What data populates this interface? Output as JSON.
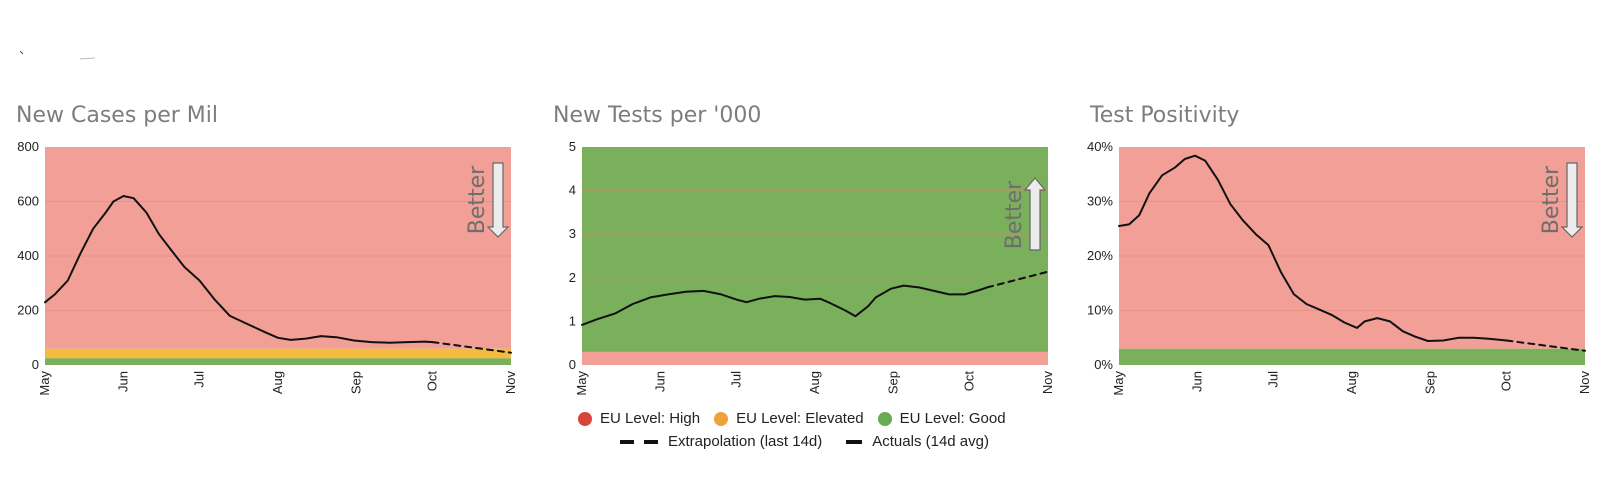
{
  "colors": {
    "high": "#f2a097",
    "elevated": "#f5bb3d",
    "good": "#7ab05c",
    "line": "#111111",
    "grid": "#e08070",
    "legend_high": "#d9443a",
    "legend_elevated": "#f0a23a",
    "legend_good": "#6aaa55"
  },
  "chart_data": [
    {
      "type": "line",
      "title": "New Cases per Mil",
      "x_ticks": [
        "May",
        "Jun",
        "Jul",
        "Aug",
        "Sep",
        "Oct",
        "Nov"
      ],
      "y_ticks": [
        "0",
        "200",
        "400",
        "600",
        "800"
      ],
      "ylim": [
        0,
        800
      ],
      "better": {
        "label": "Better",
        "direction": "down"
      },
      "bands": [
        {
          "level": "good",
          "from": 0,
          "to": 25
        },
        {
          "level": "elevated",
          "from": 25,
          "to": 60
        },
        {
          "level": "high",
          "from": 60,
          "to": 800
        }
      ],
      "series": [
        {
          "name": "Actuals (14d avg)",
          "style": "solid",
          "points": [
            [
              "2020-05-01",
              230
            ],
            [
              "2020-05-05",
              260
            ],
            [
              "2020-05-10",
              310
            ],
            [
              "2020-05-15",
              410
            ],
            [
              "2020-05-20",
              500
            ],
            [
              "2020-05-25",
              560
            ],
            [
              "2020-05-28",
              600
            ],
            [
              "2020-06-01",
              620
            ],
            [
              "2020-06-05",
              612
            ],
            [
              "2020-06-10",
              560
            ],
            [
              "2020-06-15",
              480
            ],
            [
              "2020-06-20",
              420
            ],
            [
              "2020-06-25",
              360
            ],
            [
              "2020-07-01",
              310
            ],
            [
              "2020-07-07",
              240
            ],
            [
              "2020-07-13",
              180
            ],
            [
              "2020-07-20",
              150
            ],
            [
              "2020-07-27",
              120
            ],
            [
              "2020-08-01",
              100
            ],
            [
              "2020-08-06",
              92
            ],
            [
              "2020-08-12",
              97
            ],
            [
              "2020-08-18",
              106
            ],
            [
              "2020-08-24",
              102
            ],
            [
              "2020-08-31",
              90
            ],
            [
              "2020-09-07",
              84
            ],
            [
              "2020-09-14",
              82
            ],
            [
              "2020-09-21",
              84
            ],
            [
              "2020-09-28",
              86
            ],
            [
              "2020-10-01",
              84
            ]
          ]
        },
        {
          "name": "Extrapolation (last 14d)",
          "style": "dashed",
          "points": [
            [
              "2020-10-01",
              84
            ],
            [
              "2020-11-01",
              45
            ]
          ]
        }
      ]
    },
    {
      "type": "line",
      "title": "New Tests per '000",
      "x_ticks": [
        "May",
        "Jun",
        "Jul",
        "Aug",
        "Sep",
        "Oct",
        "Nov"
      ],
      "y_ticks": [
        "0",
        "1",
        "2",
        "3",
        "4",
        "5"
      ],
      "ylim": [
        0,
        5
      ],
      "better": {
        "label": "Better",
        "direction": "up"
      },
      "bands": [
        {
          "level": "high",
          "from": 0,
          "to": 0.3
        },
        {
          "level": "good",
          "from": 0.3,
          "to": 5
        }
      ],
      "series": [
        {
          "name": "Actuals (14d avg)",
          "style": "solid",
          "points": [
            [
              "2020-05-01",
              0.92
            ],
            [
              "2020-05-07",
              1.05
            ],
            [
              "2020-05-14",
              1.18
            ],
            [
              "2020-05-21",
              1.4
            ],
            [
              "2020-05-28",
              1.55
            ],
            [
              "2020-06-04",
              1.62
            ],
            [
              "2020-06-11",
              1.68
            ],
            [
              "2020-06-18",
              1.7
            ],
            [
              "2020-06-25",
              1.62
            ],
            [
              "2020-07-01",
              1.5
            ],
            [
              "2020-07-05",
              1.44
            ],
            [
              "2020-07-10",
              1.52
            ],
            [
              "2020-07-16",
              1.58
            ],
            [
              "2020-07-22",
              1.56
            ],
            [
              "2020-07-28",
              1.5
            ],
            [
              "2020-08-03",
              1.52
            ],
            [
              "2020-08-07",
              1.42
            ],
            [
              "2020-08-13",
              1.25
            ],
            [
              "2020-08-17",
              1.12
            ],
            [
              "2020-08-22",
              1.35
            ],
            [
              "2020-08-25",
              1.55
            ],
            [
              "2020-08-31",
              1.75
            ],
            [
              "2020-09-05",
              1.82
            ],
            [
              "2020-09-11",
              1.78
            ],
            [
              "2020-09-17",
              1.7
            ],
            [
              "2020-09-23",
              1.62
            ],
            [
              "2020-09-29",
              1.62
            ],
            [
              "2020-10-05",
              1.72
            ],
            [
              "2020-10-08",
              1.78
            ]
          ]
        },
        {
          "name": "Extrapolation (last 14d)",
          "style": "dashed",
          "points": [
            [
              "2020-10-08",
              1.78
            ],
            [
              "2020-11-01",
              2.14
            ]
          ]
        }
      ]
    },
    {
      "type": "line",
      "title": "Test Positivity",
      "x_ticks": [
        "May",
        "Jun",
        "Jul",
        "Aug",
        "Sep",
        "Oct",
        "Nov"
      ],
      "y_ticks": [
        "0%",
        "10%",
        "20%",
        "30%",
        "40%"
      ],
      "ylim": [
        0,
        40
      ],
      "better": {
        "label": "Better",
        "direction": "down"
      },
      "bands": [
        {
          "level": "good",
          "from": 0,
          "to": 3
        },
        {
          "level": "high",
          "from": 3,
          "to": 40
        }
      ],
      "series": [
        {
          "name": "Actuals (14d avg)",
          "style": "solid",
          "points": [
            [
              "2020-05-01",
              25.5
            ],
            [
              "2020-05-05",
              25.8
            ],
            [
              "2020-05-09",
              27.5
            ],
            [
              "2020-05-13",
              31.5
            ],
            [
              "2020-05-18",
              34.8
            ],
            [
              "2020-05-23",
              36.2
            ],
            [
              "2020-05-27",
              37.8
            ],
            [
              "2020-05-31",
              38.4
            ],
            [
              "2020-06-04",
              37.5
            ],
            [
              "2020-06-09",
              34.0
            ],
            [
              "2020-06-14",
              29.5
            ],
            [
              "2020-06-19",
              26.5
            ],
            [
              "2020-06-24",
              24.0
            ],
            [
              "2020-06-29",
              22.0
            ],
            [
              "2020-07-04",
              17.0
            ],
            [
              "2020-07-09",
              13.0
            ],
            [
              "2020-07-14",
              11.2
            ],
            [
              "2020-07-19",
              10.2
            ],
            [
              "2020-07-24",
              9.2
            ],
            [
              "2020-07-29",
              7.8
            ],
            [
              "2020-08-03",
              6.8
            ],
            [
              "2020-08-06",
              8.0
            ],
            [
              "2020-08-11",
              8.6
            ],
            [
              "2020-08-16",
              8.0
            ],
            [
              "2020-08-21",
              6.2
            ],
            [
              "2020-08-26",
              5.2
            ],
            [
              "2020-08-31",
              4.4
            ],
            [
              "2020-09-06",
              4.5
            ],
            [
              "2020-09-12",
              5.0
            ],
            [
              "2020-09-18",
              5.0
            ],
            [
              "2020-09-24",
              4.8
            ],
            [
              "2020-10-01",
              4.5
            ]
          ]
        },
        {
          "name": "Extrapolation (last 14d)",
          "style": "dashed",
          "points": [
            [
              "2020-10-01",
              4.5
            ],
            [
              "2020-11-01",
              2.6
            ]
          ]
        }
      ]
    }
  ],
  "legend": {
    "high": "EU Level: High",
    "elevated": "EU Level: Elevated",
    "good": "EU Level: Good",
    "extrapolation": "Extrapolation (last 14d)",
    "actuals": "Actuals (14d avg)"
  }
}
